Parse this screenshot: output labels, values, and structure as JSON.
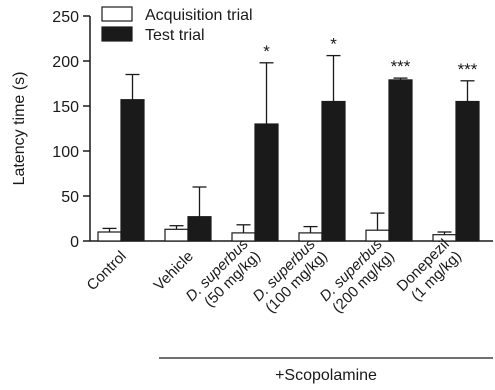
{
  "chart_data": {
    "type": "bar",
    "ylabel": "Latency time (s)",
    "ylim": [
      0,
      250
    ],
    "yticks": [
      0,
      50,
      100,
      150,
      200,
      250
    ],
    "grid": false,
    "legend_position": "top-left",
    "categories": [
      {
        "lines": [
          {
            "text": "Control",
            "italic": false
          }
        ]
      },
      {
        "lines": [
          {
            "text": "Vehicle",
            "italic": false
          }
        ]
      },
      {
        "lines": [
          {
            "text": "D. superbus",
            "italic": true
          },
          {
            "text": "(50 mg/kg)",
            "italic": false
          }
        ]
      },
      {
        "lines": [
          {
            "text": "D. superbus",
            "italic": true
          },
          {
            "text": "(100 mg/kg)",
            "italic": false
          }
        ]
      },
      {
        "lines": [
          {
            "text": "D. superbus",
            "italic": true
          },
          {
            "text": "(200 mg/kg)",
            "italic": false
          }
        ]
      },
      {
        "lines": [
          {
            "text": "Donepezil",
            "italic": false
          },
          {
            "text": "(1 mg/kg)",
            "italic": false
          }
        ]
      }
    ],
    "series": [
      {
        "name": "Acquisition trial",
        "fill": "#ffffff",
        "values": [
          10,
          13,
          9,
          9,
          12,
          7
        ],
        "errors": [
          4,
          4,
          9,
          7,
          19,
          3
        ]
      },
      {
        "name": "Test trial",
        "fill": "#1a1a1a",
        "values": [
          157,
          27,
          130,
          155,
          179,
          155
        ],
        "errors": [
          28,
          33,
          68,
          51,
          2,
          23
        ]
      }
    ],
    "annotations": [
      "",
      "",
      "*",
      "*",
      "***",
      "***"
    ],
    "group_label": "+Scopolamine",
    "colors": {
      "axis": "#1a1a1a",
      "bar_stroke": "#1a1a1a"
    }
  }
}
